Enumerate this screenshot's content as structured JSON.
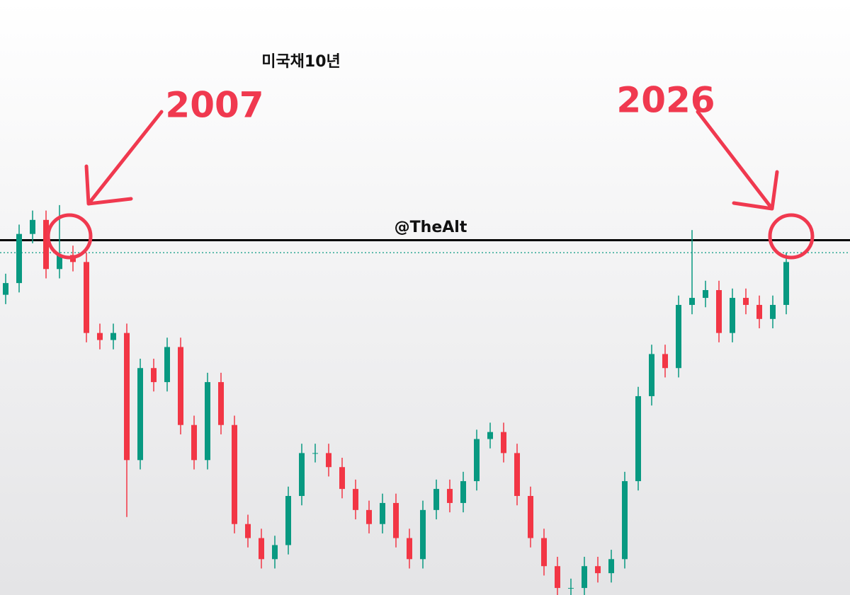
{
  "chart_data": {
    "type": "candlestick",
    "title": "미국채10년",
    "watermark": "@TheAlt",
    "annotations": [
      "2007",
      "2026"
    ],
    "ylim": [
      0.45,
      8.08
    ],
    "up_color": "#089981",
    "down_color": "#f23645",
    "levels": [
      {
        "value": 5.0,
        "color": "#000000",
        "style": "solid"
      },
      {
        "value": 4.84,
        "color": "#089981",
        "style": "dotted"
      }
    ],
    "open": [
      4.3,
      4.45,
      5.08,
      5.26,
      4.63,
      4.81,
      4.72,
      3.81,
      3.72,
      3.81,
      2.18,
      3.36,
      3.18,
      3.63,
      2.63,
      2.18,
      3.18,
      2.63,
      1.36,
      1.18,
      0.91,
      1.09,
      1.72,
      2.27,
      2.27,
      2.09,
      1.81,
      1.54,
      1.36,
      1.63,
      1.18,
      0.91,
      1.54,
      1.81,
      1.63,
      1.91,
      2.45,
      2.54,
      2.27,
      1.72,
      1.18,
      0.82,
      0.54,
      0.54,
      0.82,
      0.73,
      0.91,
      1.91,
      3.0,
      3.54,
      3.36,
      4.17,
      4.26,
      4.36,
      3.81,
      4.26,
      4.17,
      3.99,
      4.17
    ],
    "high": [
      4.57,
      5.2,
      5.38,
      5.38,
      5.45,
      4.93,
      4.84,
      3.93,
      3.93,
      3.93,
      3.48,
      3.48,
      3.75,
      3.75,
      2.75,
      3.3,
      3.3,
      2.75,
      1.48,
      1.3,
      1.21,
      1.84,
      2.39,
      2.39,
      2.39,
      2.21,
      1.93,
      1.66,
      1.75,
      1.75,
      1.3,
      1.66,
      1.93,
      1.93,
      2.03,
      2.57,
      2.66,
      2.66,
      2.39,
      1.84,
      1.3,
      0.94,
      0.66,
      0.94,
      0.94,
      1.03,
      2.03,
      3.12,
      3.66,
      3.66,
      4.29,
      5.13,
      4.48,
      4.48,
      4.38,
      4.38,
      4.29,
      4.29,
      4.84
    ],
    "low": [
      4.18,
      4.33,
      4.96,
      4.51,
      4.51,
      4.6,
      3.69,
      3.6,
      3.6,
      1.45,
      2.06,
      3.06,
      3.06,
      2.51,
      2.06,
      2.06,
      2.51,
      1.24,
      1.06,
      0.79,
      0.79,
      0.97,
      1.6,
      2.15,
      1.97,
      1.69,
      1.42,
      1.24,
      1.24,
      1.06,
      0.79,
      0.79,
      1.42,
      1.51,
      1.51,
      1.79,
      2.33,
      2.15,
      1.6,
      1.06,
      0.7,
      0.45,
      0.45,
      0.45,
      0.61,
      0.61,
      0.79,
      1.79,
      2.88,
      3.24,
      3.24,
      4.05,
      4.14,
      3.69,
      3.69,
      4.05,
      3.87,
      3.87,
      4.05
    ],
    "close": [
      4.45,
      5.08,
      5.26,
      4.63,
      4.81,
      4.72,
      3.81,
      3.72,
      3.81,
      2.18,
      3.36,
      3.18,
      3.63,
      2.63,
      2.18,
      3.18,
      2.63,
      1.36,
      1.18,
      0.91,
      1.09,
      1.72,
      2.27,
      2.27,
      2.09,
      1.81,
      1.54,
      1.36,
      1.63,
      1.18,
      0.91,
      1.54,
      1.81,
      1.63,
      1.91,
      2.45,
      2.54,
      2.27,
      1.72,
      1.18,
      0.82,
      0.54,
      0.54,
      0.82,
      0.73,
      0.91,
      1.91,
      3.0,
      3.54,
      3.36,
      4.17,
      4.26,
      4.36,
      3.81,
      4.26,
      4.17,
      3.99,
      4.17,
      4.72
    ]
  }
}
